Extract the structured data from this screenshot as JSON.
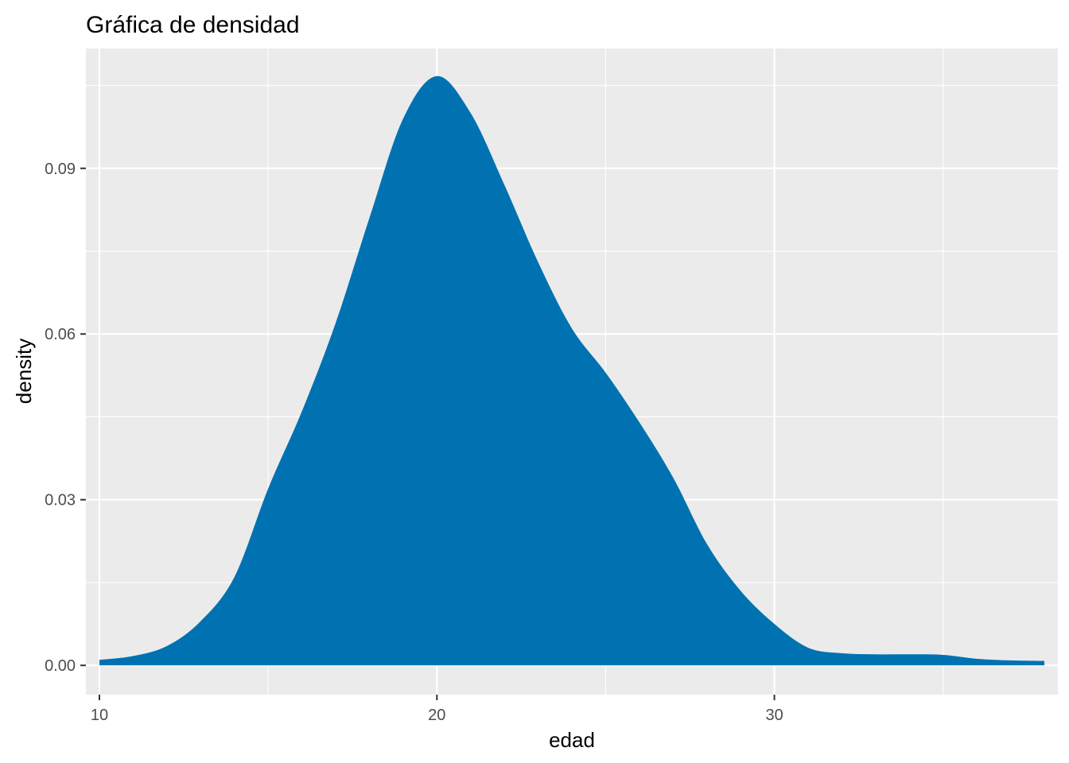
{
  "chart_data": {
    "type": "area",
    "title": "Gráfica de densidad",
    "xlabel": "edad",
    "ylabel": "density",
    "xlim": [
      9.6,
      38.4
    ],
    "ylim": [
      -0.0053,
      0.1117
    ],
    "x_ticks": [
      10,
      20,
      30
    ],
    "x_tick_labels": [
      "10",
      "20",
      "30"
    ],
    "x_minor_ticks": [
      15,
      25,
      35
    ],
    "y_ticks": [
      0.0,
      0.03,
      0.06,
      0.09
    ],
    "y_tick_labels": [
      "0.00",
      "0.03",
      "0.06",
      "0.09"
    ],
    "y_minor_ticks": [
      0.015,
      0.045,
      0.075,
      0.105
    ],
    "grid": true,
    "legend": "none",
    "colors": {
      "fill": "#0072B2",
      "panel": "#EBEBEB",
      "grid": "#FFFFFF"
    },
    "series": [
      {
        "x": [
          10,
          11,
          12,
          13,
          14,
          15,
          16,
          17,
          18,
          19,
          20,
          21,
          22,
          23,
          24,
          25,
          26,
          27,
          28,
          29,
          30,
          31,
          32,
          33,
          34,
          35,
          36,
          37,
          38
        ],
        "values": [
          0.001,
          0.0017,
          0.0035,
          0.008,
          0.016,
          0.032,
          0.046,
          0.062,
          0.081,
          0.099,
          0.1067,
          0.1,
          0.087,
          0.073,
          0.061,
          0.053,
          0.044,
          0.034,
          0.022,
          0.0135,
          0.0075,
          0.0032,
          0.0022,
          0.002,
          0.002,
          0.0019,
          0.0012,
          0.0009,
          0.0008
        ]
      }
    ]
  }
}
